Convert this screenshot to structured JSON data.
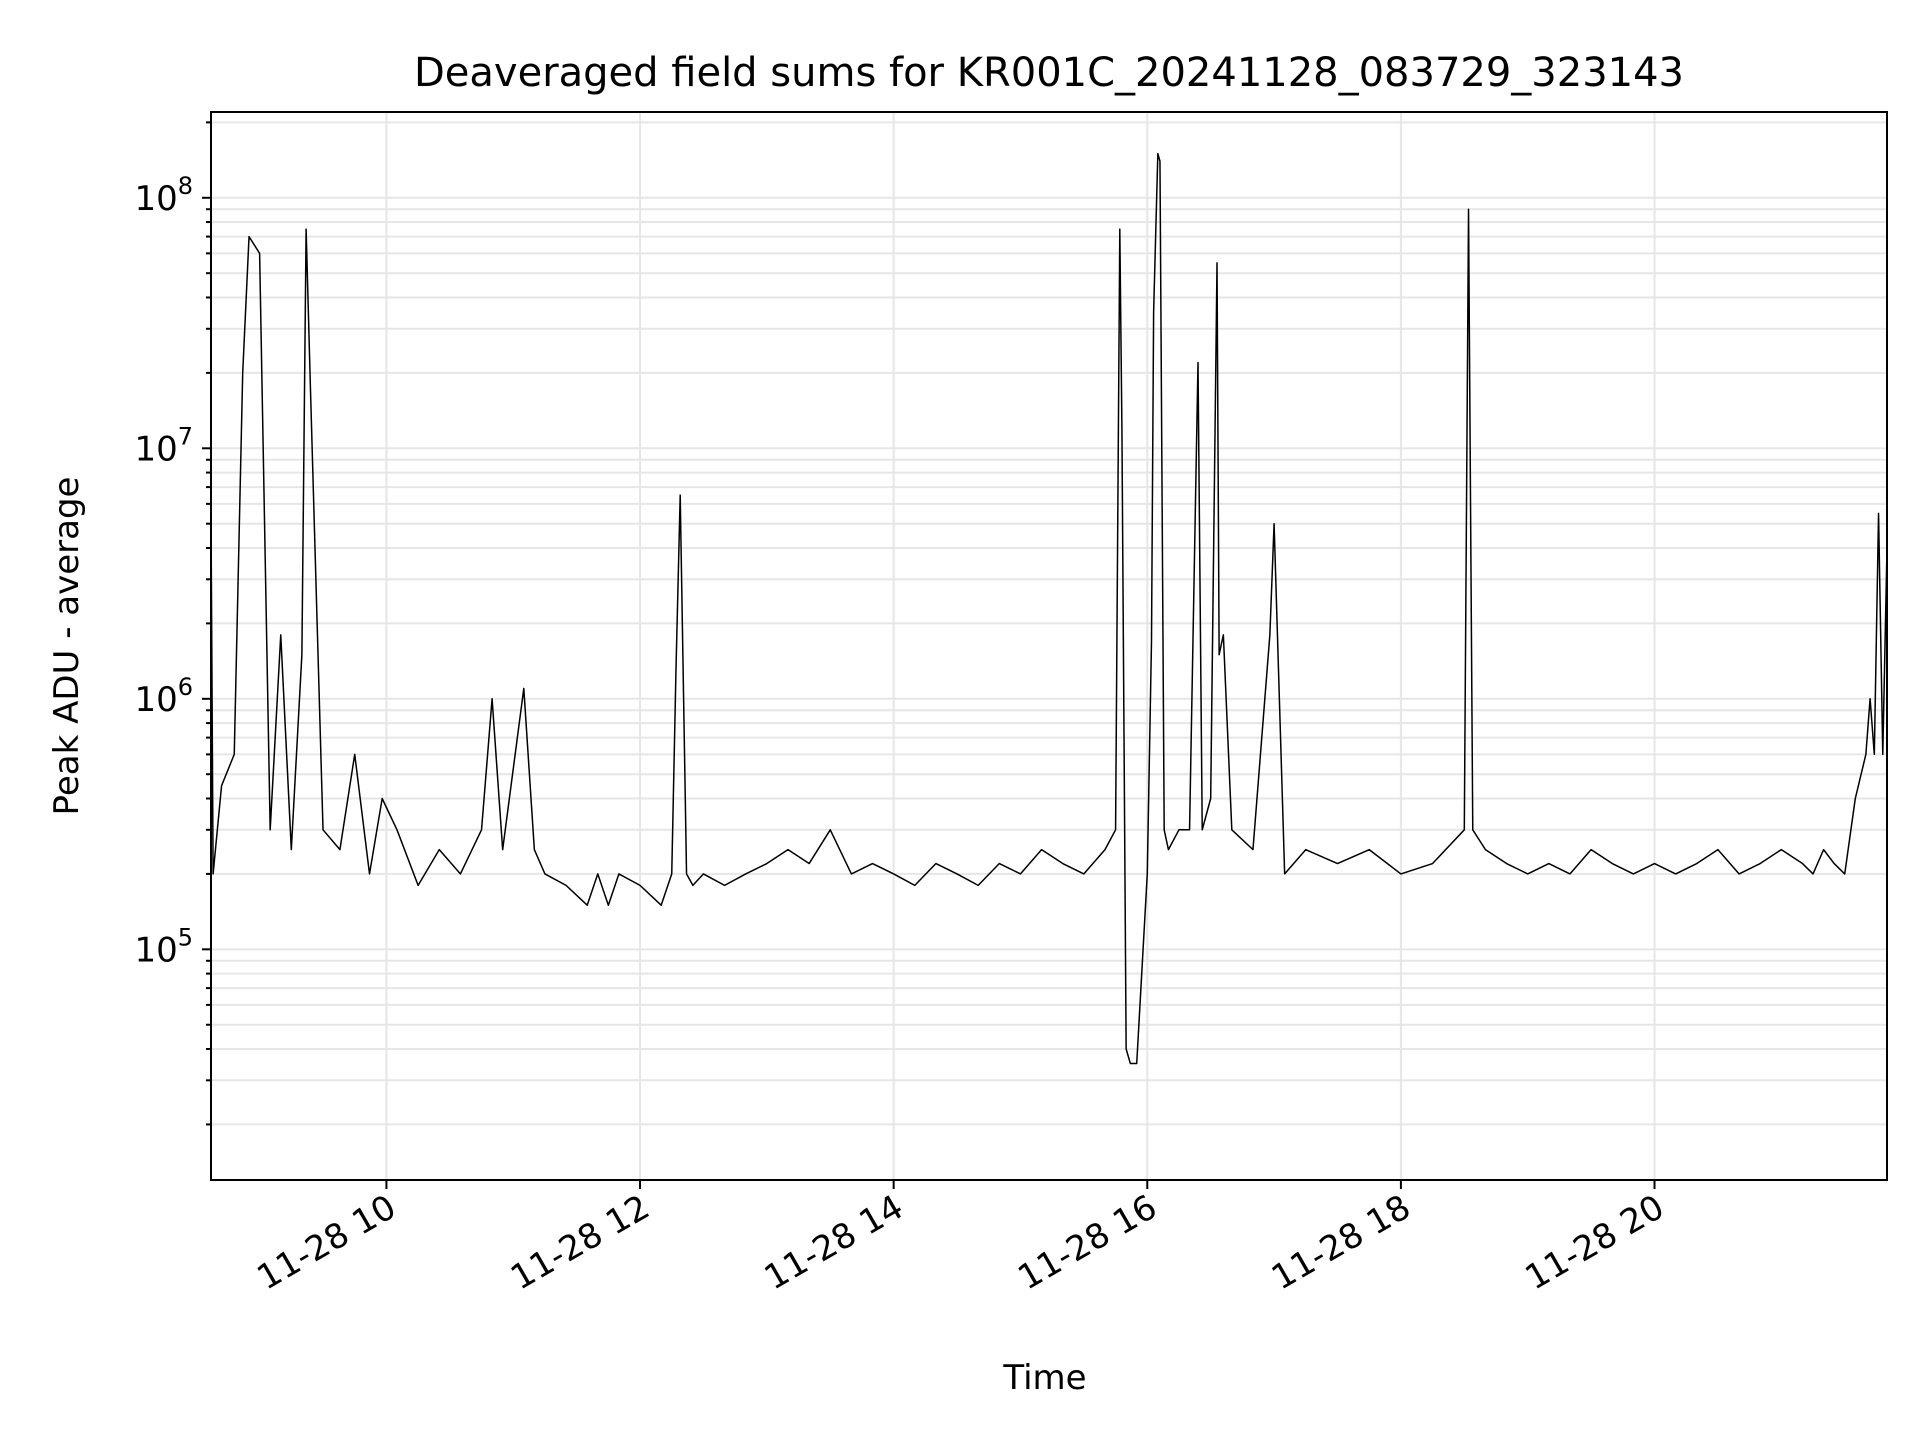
{
  "chart_data": {
    "type": "line",
    "title": "Deaveraged field sums for KR001C_20241128_083729_323143",
    "xlabel": "Time",
    "ylabel": "Peak ADU - average",
    "y_scale": "log",
    "ylim": [
      12000,
      220000000
    ],
    "xlim": [
      "2024-11-28 08:37",
      "2024-11-28 21:50"
    ],
    "grid": true,
    "legend": "none",
    "colors": {
      "line": "#000000",
      "grid": "#e6e6e6",
      "background": "#ffffff"
    },
    "x_ticks": [
      {
        "time": "2024-11-28 10:00",
        "label": "11-28 10"
      },
      {
        "time": "2024-11-28 12:00",
        "label": "11-28 12"
      },
      {
        "time": "2024-11-28 14:00",
        "label": "11-28 14"
      },
      {
        "time": "2024-11-28 16:00",
        "label": "11-28 16"
      },
      {
        "time": "2024-11-28 18:00",
        "label": "11-28 18"
      },
      {
        "time": "2024-11-28 20:00",
        "label": "11-28 20"
      }
    ],
    "y_ticks": [
      {
        "value": 100000,
        "base": "10",
        "exp": "5"
      },
      {
        "value": 1000000,
        "base": "10",
        "exp": "6"
      },
      {
        "value": 10000000,
        "base": "10",
        "exp": "7"
      },
      {
        "value": 100000000,
        "base": "10",
        "exp": "8"
      }
    ],
    "series": [
      {
        "x": [
          "2024-11-28 08:37",
          "2024-11-28 08:38",
          "2024-11-28 08:42",
          "2024-11-28 08:48",
          "2024-11-28 08:52",
          "2024-11-28 08:55",
          "2024-11-28 09:00",
          "2024-11-28 09:05",
          "2024-11-28 09:10",
          "2024-11-28 09:15",
          "2024-11-28 09:20",
          "2024-11-28 09:22",
          "2024-11-28 09:24",
          "2024-11-28 09:30",
          "2024-11-28 09:38",
          "2024-11-28 09:45",
          "2024-11-28 09:52",
          "2024-11-28 09:58",
          "2024-11-28 10:05",
          "2024-11-28 10:15",
          "2024-11-28 10:25",
          "2024-11-28 10:35",
          "2024-11-28 10:45",
          "2024-11-28 10:50",
          "2024-11-28 10:55",
          "2024-11-28 11:05",
          "2024-11-28 11:10",
          "2024-11-28 11:15",
          "2024-11-28 11:25",
          "2024-11-28 11:35",
          "2024-11-28 11:40",
          "2024-11-28 11:45",
          "2024-11-28 11:50",
          "2024-11-28 12:00",
          "2024-11-28 12:10",
          "2024-11-28 12:15",
          "2024-11-28 12:17",
          "2024-11-28 12:19",
          "2024-11-28 12:22",
          "2024-11-28 12:25",
          "2024-11-28 12:30",
          "2024-11-28 12:40",
          "2024-11-28 12:50",
          "2024-11-28 13:00",
          "2024-11-28 13:10",
          "2024-11-28 13:20",
          "2024-11-28 13:30",
          "2024-11-28 13:40",
          "2024-11-28 13:50",
          "2024-11-28 14:00",
          "2024-11-28 14:10",
          "2024-11-28 14:20",
          "2024-11-28 14:30",
          "2024-11-28 14:40",
          "2024-11-28 14:50",
          "2024-11-28 15:00",
          "2024-11-28 15:10",
          "2024-11-28 15:20",
          "2024-11-28 15:30",
          "2024-11-28 15:40",
          "2024-11-28 15:45",
          "2024-11-28 15:47",
          "2024-11-28 15:48",
          "2024-11-28 15:50",
          "2024-11-28 15:52",
          "2024-11-28 15:55",
          "2024-11-28 16:00",
          "2024-11-28 16:02",
          "2024-11-28 16:03",
          "2024-11-28 16:05",
          "2024-11-28 16:06",
          "2024-11-28 16:08",
          "2024-11-28 16:10",
          "2024-11-28 16:15",
          "2024-11-28 16:20",
          "2024-11-28 16:24",
          "2024-11-28 16:26",
          "2024-11-28 16:30",
          "2024-11-28 16:33",
          "2024-11-28 16:34",
          "2024-11-28 16:36",
          "2024-11-28 16:40",
          "2024-11-28 16:50",
          "2024-11-28 16:58",
          "2024-11-28 17:00",
          "2024-11-28 17:05",
          "2024-11-28 17:15",
          "2024-11-28 17:30",
          "2024-11-28 17:45",
          "2024-11-28 18:00",
          "2024-11-28 18:15",
          "2024-11-28 18:30",
          "2024-11-28 18:32",
          "2024-11-28 18:34",
          "2024-11-28 18:40",
          "2024-11-28 18:50",
          "2024-11-28 19:00",
          "2024-11-28 19:10",
          "2024-11-28 19:20",
          "2024-11-28 19:30",
          "2024-11-28 19:40",
          "2024-11-28 19:50",
          "2024-11-28 20:00",
          "2024-11-28 20:10",
          "2024-11-28 20:20",
          "2024-11-28 20:30",
          "2024-11-28 20:40",
          "2024-11-28 20:50",
          "2024-11-28 21:00",
          "2024-11-28 21:10",
          "2024-11-28 21:15",
          "2024-11-28 21:20",
          "2024-11-28 21:25",
          "2024-11-28 21:30",
          "2024-11-28 21:35",
          "2024-11-28 21:40",
          "2024-11-28 21:42",
          "2024-11-28 21:44",
          "2024-11-28 21:46",
          "2024-11-28 21:48",
          "2024-11-28 21:50"
        ],
        "y": [
          5500000,
          200000,
          450000,
          600000,
          20000000,
          70000000,
          60000000,
          300000,
          1800000,
          250000,
          1500000,
          75000000,
          18000000,
          300000,
          250000,
          600000,
          200000,
          400000,
          300000,
          180000,
          250000,
          200000,
          300000,
          1000000,
          250000,
          1100000,
          250000,
          200000,
          180000,
          150000,
          200000,
          150000,
          200000,
          180000,
          150000,
          200000,
          1300000,
          6500000,
          200000,
          180000,
          200000,
          180000,
          200000,
          220000,
          250000,
          220000,
          300000,
          200000,
          220000,
          200000,
          180000,
          220000,
          200000,
          180000,
          220000,
          200000,
          250000,
          220000,
          200000,
          250000,
          300000,
          75000000,
          12000000,
          40000,
          35000,
          35000,
          200000,
          1700000,
          35000000,
          150000000,
          140000000,
          300000,
          250000,
          300000,
          300000,
          22000000,
          300000,
          400000,
          55000000,
          1500000,
          1800000,
          300000,
          250000,
          1800000,
          5000000,
          200000,
          250000,
          220000,
          250000,
          200000,
          220000,
          300000,
          90000000,
          300000,
          250000,
          220000,
          200000,
          220000,
          200000,
          250000,
          220000,
          200000,
          220000,
          200000,
          220000,
          250000,
          200000,
          220000,
          250000,
          220000,
          200000,
          250000,
          220000,
          200000,
          400000,
          600000,
          1000000,
          600000,
          5500000,
          600000,
          4000000
        ]
      }
    ]
  }
}
